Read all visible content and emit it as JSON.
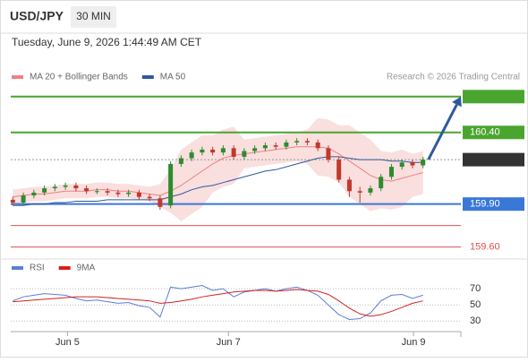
{
  "header": {
    "symbol": "USD/JPY",
    "timeframe": "30 MIN",
    "timestamp": "Tuesday, June 9, 2026 1:44:49 AM CET"
  },
  "chart_data": [
    {
      "type": "candlestick",
      "legend": [
        {
          "name": "MA 20 + Bollinger Bands",
          "color": "#f08080"
        },
        {
          "name": "MA 50",
          "color": "#2e5a9c"
        }
      ],
      "source": "Research © 2026 Trading Central",
      "up_color": "#2e8b2e",
      "down_color": "#c0392b",
      "xlim": [
        -0.2,
        42.6
      ],
      "xticks": [
        {
          "value": 5.2,
          "label": "Jun 5"
        },
        {
          "value": 20.5,
          "label": "Jun 7"
        },
        {
          "value": 38.1,
          "label": "Jun 9"
        }
      ],
      "ylim": [
        159.56,
        160.73
      ],
      "open": [
        159.93,
        159.91,
        159.96,
        159.98,
        160.01,
        160.02,
        160.03,
        160.01,
        159.99,
        159.99,
        159.98,
        159.97,
        159.98,
        159.95,
        159.94,
        159.89,
        160.18,
        160.22,
        160.26,
        160.28,
        160.26,
        160.29,
        160.23,
        160.27,
        160.29,
        160.31,
        160.3,
        160.33,
        160.34,
        160.33,
        160.29,
        160.21,
        160.07,
        159.99,
        159.98,
        160.01,
        160.09,
        160.16,
        160.19,
        160.17
      ],
      "high": [
        159.95,
        159.98,
        160.0,
        160.03,
        160.04,
        160.05,
        160.05,
        160.03,
        160.01,
        160.01,
        160.0,
        160.0,
        160.0,
        159.97,
        159.96,
        160.2,
        160.24,
        160.28,
        160.3,
        160.3,
        160.31,
        160.31,
        160.29,
        160.31,
        160.33,
        160.33,
        160.35,
        160.36,
        160.36,
        160.35,
        160.31,
        160.23,
        160.09,
        160.02,
        160.03,
        160.11,
        160.18,
        160.21,
        160.21,
        160.23
      ],
      "low": [
        159.89,
        159.89,
        159.94,
        159.96,
        159.99,
        160.0,
        159.99,
        159.97,
        159.97,
        159.96,
        159.95,
        159.95,
        159.93,
        159.92,
        159.86,
        159.87,
        160.16,
        160.2,
        160.24,
        160.24,
        160.24,
        160.21,
        160.21,
        160.25,
        160.27,
        160.28,
        160.28,
        160.31,
        160.31,
        160.27,
        160.19,
        160.05,
        159.95,
        159.91,
        159.96,
        159.99,
        160.07,
        160.14,
        160.15,
        160.15
      ],
      "close": [
        159.91,
        159.96,
        159.98,
        160.01,
        160.02,
        160.03,
        160.01,
        159.99,
        159.99,
        159.98,
        159.97,
        159.98,
        159.95,
        159.94,
        159.88,
        160.18,
        160.22,
        160.26,
        160.28,
        160.26,
        160.29,
        160.23,
        160.27,
        160.29,
        160.31,
        160.3,
        160.33,
        160.34,
        160.33,
        160.29,
        160.21,
        160.07,
        159.99,
        159.98,
        160.01,
        160.09,
        160.16,
        160.19,
        160.17,
        160.21
      ],
      "ma20": [
        159.95,
        159.96,
        159.97,
        159.97,
        159.98,
        159.99,
        159.99,
        159.99,
        160.0,
        160.0,
        159.99,
        159.99,
        159.98,
        159.97,
        159.96,
        159.99,
        160.03,
        160.08,
        160.13,
        160.18,
        160.22,
        160.24,
        160.25,
        160.26,
        160.27,
        160.28,
        160.29,
        160.3,
        160.3,
        160.3,
        160.29,
        160.25,
        160.2,
        160.15,
        160.1,
        160.07,
        160.06,
        160.08,
        160.1,
        160.12
      ],
      "ma50": [
        159.89,
        159.89,
        159.9,
        159.9,
        159.91,
        159.91,
        159.92,
        159.92,
        159.92,
        159.93,
        159.93,
        159.93,
        159.93,
        159.93,
        159.93,
        159.95,
        159.97,
        160.0,
        160.02,
        160.03,
        160.05,
        160.07,
        160.09,
        160.11,
        160.13,
        160.14,
        160.16,
        160.18,
        160.2,
        160.22,
        160.23,
        160.23,
        160.22,
        160.21,
        160.21,
        160.21,
        160.2,
        160.2,
        160.19,
        160.19
      ],
      "bb_upper": [
        160.0,
        160.01,
        160.02,
        160.02,
        160.03,
        160.04,
        160.04,
        160.04,
        160.05,
        160.05,
        160.04,
        160.04,
        160.03,
        160.02,
        160.04,
        160.14,
        160.28,
        160.33,
        160.38,
        160.38,
        160.42,
        160.44,
        160.35,
        160.36,
        160.37,
        160.38,
        160.39,
        160.4,
        160.42,
        160.5,
        160.49,
        160.45,
        160.45,
        160.4,
        160.35,
        160.27,
        160.26,
        160.28,
        160.25,
        160.27
      ],
      "bb_lower": [
        159.9,
        159.91,
        159.92,
        159.92,
        159.93,
        159.94,
        159.94,
        159.94,
        159.95,
        159.95,
        159.94,
        159.94,
        159.93,
        159.92,
        159.88,
        159.84,
        159.78,
        159.83,
        159.88,
        159.98,
        160.02,
        160.04,
        160.15,
        160.16,
        160.17,
        160.18,
        160.19,
        160.2,
        160.18,
        160.1,
        160.09,
        160.05,
        159.95,
        159.9,
        159.85,
        159.87,
        159.86,
        159.88,
        159.95,
        159.97
      ],
      "levels": [
        {
          "value": 160.65,
          "color": "#4aa52e",
          "style": "box"
        },
        {
          "value": 160.4,
          "label": "160.40",
          "color": "#4aa52e",
          "style": "box"
        },
        {
          "value": 160.21,
          "color": "#333333",
          "style": "dotted"
        },
        {
          "value": 159.9,
          "label": "159.90",
          "color": "#3a78d8",
          "style": "box"
        },
        {
          "value": 159.75,
          "color": "#e05050",
          "style": "text"
        },
        {
          "value": 159.6,
          "label": "159.60",
          "color": "#e05050",
          "style": "text"
        }
      ]
    },
    {
      "type": "line",
      "series": [
        {
          "name": "RSI",
          "color": "#5a7fd6",
          "values": [
            55,
            60,
            62,
            64,
            63,
            62,
            58,
            55,
            56,
            54,
            52,
            53,
            49,
            47,
            35,
            72,
            70,
            72,
            74,
            68,
            70,
            60,
            66,
            68,
            70,
            67,
            70,
            72,
            68,
            62,
            50,
            38,
            32,
            33,
            40,
            55,
            62,
            63,
            58,
            62
          ]
        },
        {
          "name": "9MA",
          "color": "#d62020",
          "values": [
            54,
            55,
            56,
            57,
            58,
            59,
            60,
            60,
            60,
            59,
            58,
            57,
            56,
            55,
            52,
            53,
            55,
            57,
            60,
            62,
            64,
            66,
            67,
            68,
            68,
            67,
            68,
            69,
            68,
            67,
            63,
            55,
            46,
            39,
            36,
            38,
            42,
            47,
            52,
            55
          ]
        }
      ],
      "xlim": [
        -0.2,
        42.6
      ],
      "ylim": [
        17,
        89
      ],
      "yticks": [
        30,
        50,
        70
      ]
    }
  ]
}
